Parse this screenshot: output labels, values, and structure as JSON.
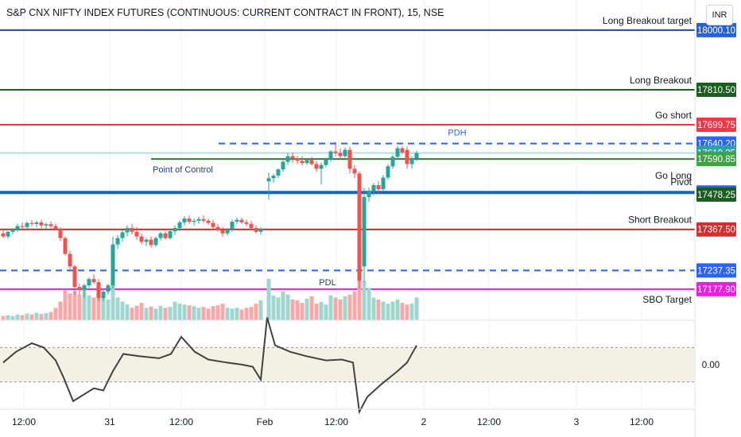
{
  "header": {
    "title": "S&P CNX NIFTY INDEX FUTURES (CONTINUOUS: CURRENT CONTRACT IN FRONT), 15, NSE",
    "currency": "INR"
  },
  "chart_data": {
    "type": "candlestick",
    "ylim": [
      17150,
      18030
    ],
    "time_axis": {
      "ticks": [
        {
          "label": "12:00",
          "t": 30
        },
        {
          "label": "31",
          "t": 138
        },
        {
          "label": "12:00",
          "t": 228
        },
        {
          "label": "Feb",
          "t": 333
        },
        {
          "label": "12:00",
          "t": 423
        },
        {
          "label": "2",
          "t": 533
        },
        {
          "label": "12:00",
          "t": 615
        },
        {
          "label": "3",
          "t": 725
        },
        {
          "label": "12:00",
          "t": 807
        }
      ]
    },
    "levels": [
      {
        "name": "Long Breakout target",
        "price": 18000.1,
        "color": "#1e45b4",
        "style": "solid",
        "badge_color": "#2962cc",
        "from_t": 0
      },
      {
        "name": "Long Breakout",
        "price": 17810.5,
        "color": "#1b5e20",
        "style": "solid",
        "badge_color": "#1b5e20",
        "from_t": 0
      },
      {
        "name": "Go short",
        "price": 17699.75,
        "color": "#e53935",
        "style": "solid",
        "badge_color": "#f23645",
        "from_t": 0
      },
      {
        "name": "PDH",
        "price": 17640.2,
        "color": "#2962ff",
        "style": "dashed",
        "badge_color": "#2962ff",
        "from_t": 275,
        "label_pos": "center"
      },
      {
        "name": "",
        "price": 17610.25,
        "color": "#b2dfdb",
        "style": "solid",
        "badge_color": "#26a69a",
        "from_t": 0
      },
      {
        "name": "Point of Control",
        "price": 17590.85,
        "color": "#2e7d32",
        "style": "solid",
        "badge_color": "#43a047",
        "from_t": 190,
        "label_pos": "left"
      },
      {
        "name": "Pivot",
        "price": 17484.75,
        "color": "#1565c0",
        "style": "thick",
        "badge_color": "#2962ff",
        "from_t": 0
      },
      {
        "name": "Go Long",
        "price": 17478.25,
        "color": "#1b5e20",
        "style": "none",
        "badge_color": "#1b5e20",
        "from_t": 0
      },
      {
        "name": "Short Breakout",
        "price": 17367.5,
        "color": "#c62828",
        "style": "solid",
        "badge_color": "#d32f2f",
        "from_t": 0
      },
      {
        "name": "",
        "price": 17237.35,
        "color": "#2962ff",
        "style": "dashed",
        "badge_color": "#2962ff",
        "from_t": 0
      },
      {
        "name": "PDL",
        "price": 17177.9,
        "color": "#e91ee0",
        "style": "solid",
        "badge_color": "#e91ee0",
        "from_t": 0,
        "label_pos": "pdl"
      },
      {
        "name": "SBO Target",
        "price": null,
        "color": "#131722",
        "style": "none",
        "badge_color": "",
        "from_t": 0
      }
    ],
    "candles": [
      {
        "t": 4,
        "o": 17355,
        "h": 17368,
        "l": 17340,
        "c": 17345
      },
      {
        "t": 10,
        "o": 17345,
        "h": 17362,
        "l": 17338,
        "c": 17360
      },
      {
        "t": 16,
        "o": 17360,
        "h": 17372,
        "l": 17352,
        "c": 17368
      },
      {
        "t": 22,
        "o": 17368,
        "h": 17385,
        "l": 17360,
        "c": 17378
      },
      {
        "t": 28,
        "o": 17378,
        "h": 17390,
        "l": 17368,
        "c": 17375
      },
      {
        "t": 34,
        "o": 17375,
        "h": 17392,
        "l": 17368,
        "c": 17388
      },
      {
        "t": 40,
        "o": 17388,
        "h": 17398,
        "l": 17378,
        "c": 17385
      },
      {
        "t": 46,
        "o": 17385,
        "h": 17395,
        "l": 17375,
        "c": 17390
      },
      {
        "t": 52,
        "o": 17390,
        "h": 17398,
        "l": 17372,
        "c": 17380
      },
      {
        "t": 58,
        "o": 17380,
        "h": 17388,
        "l": 17370,
        "c": 17384
      },
      {
        "t": 64,
        "o": 17384,
        "h": 17392,
        "l": 17372,
        "c": 17378
      },
      {
        "t": 70,
        "o": 17378,
        "h": 17386,
        "l": 17365,
        "c": 17370
      },
      {
        "t": 76,
        "o": 17370,
        "h": 17375,
        "l": 17330,
        "c": 17340
      },
      {
        "t": 82,
        "o": 17340,
        "h": 17345,
        "l": 17285,
        "c": 17290
      },
      {
        "t": 88,
        "o": 17290,
        "h": 17300,
        "l": 17240,
        "c": 17250
      },
      {
        "t": 94,
        "o": 17250,
        "h": 17255,
        "l": 17160,
        "c": 17185
      },
      {
        "t": 100,
        "o": 17185,
        "h": 17195,
        "l": 17160,
        "c": 17175
      },
      {
        "t": 106,
        "o": 17175,
        "h": 17195,
        "l": 17150,
        "c": 17190
      },
      {
        "t": 112,
        "o": 17190,
        "h": 17215,
        "l": 17182,
        "c": 17210
      },
      {
        "t": 118,
        "o": 17210,
        "h": 17225,
        "l": 17195,
        "c": 17200
      },
      {
        "t": 124,
        "o": 17200,
        "h": 17210,
        "l": 17140,
        "c": 17150
      },
      {
        "t": 130,
        "o": 17150,
        "h": 17175,
        "l": 17140,
        "c": 17170
      },
      {
        "t": 136,
        "o": 17170,
        "h": 17195,
        "l": 17160,
        "c": 17190
      },
      {
        "t": 142,
        "o": 17190,
        "h": 17345,
        "l": 17180,
        "c": 17320
      },
      {
        "t": 148,
        "o": 17320,
        "h": 17350,
        "l": 17305,
        "c": 17340
      },
      {
        "t": 154,
        "o": 17340,
        "h": 17365,
        "l": 17328,
        "c": 17358
      },
      {
        "t": 160,
        "o": 17358,
        "h": 17380,
        "l": 17345,
        "c": 17372
      },
      {
        "t": 166,
        "o": 17372,
        "h": 17385,
        "l": 17352,
        "c": 17360
      },
      {
        "t": 172,
        "o": 17360,
        "h": 17375,
        "l": 17335,
        "c": 17345
      },
      {
        "t": 178,
        "o": 17345,
        "h": 17355,
        "l": 17320,
        "c": 17328
      },
      {
        "t": 184,
        "o": 17328,
        "h": 17340,
        "l": 17315,
        "c": 17335
      },
      {
        "t": 190,
        "o": 17335,
        "h": 17345,
        "l": 17310,
        "c": 17318
      },
      {
        "t": 196,
        "o": 17318,
        "h": 17345,
        "l": 17312,
        "c": 17340
      },
      {
        "t": 202,
        "o": 17340,
        "h": 17360,
        "l": 17332,
        "c": 17355
      },
      {
        "t": 208,
        "o": 17355,
        "h": 17362,
        "l": 17335,
        "c": 17340
      },
      {
        "t": 214,
        "o": 17340,
        "h": 17370,
        "l": 17335,
        "c": 17362
      },
      {
        "t": 220,
        "o": 17362,
        "h": 17380,
        "l": 17350,
        "c": 17372
      },
      {
        "t": 226,
        "o": 17372,
        "h": 17395,
        "l": 17362,
        "c": 17390
      },
      {
        "t": 232,
        "o": 17390,
        "h": 17410,
        "l": 17380,
        "c": 17402
      },
      {
        "t": 238,
        "o": 17402,
        "h": 17412,
        "l": 17385,
        "c": 17392
      },
      {
        "t": 244,
        "o": 17392,
        "h": 17402,
        "l": 17380,
        "c": 17395
      },
      {
        "t": 250,
        "o": 17395,
        "h": 17408,
        "l": 17385,
        "c": 17400
      },
      {
        "t": 256,
        "o": 17400,
        "h": 17412,
        "l": 17388,
        "c": 17395
      },
      {
        "t": 262,
        "o": 17395,
        "h": 17402,
        "l": 17382,
        "c": 17388
      },
      {
        "t": 268,
        "o": 17388,
        "h": 17398,
        "l": 17370,
        "c": 17375
      },
      {
        "t": 274,
        "o": 17375,
        "h": 17385,
        "l": 17360,
        "c": 17365
      },
      {
        "t": 280,
        "o": 17365,
        "h": 17375,
        "l": 17345,
        "c": 17355
      },
      {
        "t": 286,
        "o": 17355,
        "h": 17372,
        "l": 17348,
        "c": 17368
      },
      {
        "t": 292,
        "o": 17368,
        "h": 17398,
        "l": 17360,
        "c": 17392
      },
      {
        "t": 298,
        "o": 17392,
        "h": 17405,
        "l": 17385,
        "c": 17398
      },
      {
        "t": 304,
        "o": 17398,
        "h": 17405,
        "l": 17385,
        "c": 17390
      },
      {
        "t": 310,
        "o": 17390,
        "h": 17398,
        "l": 17378,
        "c": 17385
      },
      {
        "t": 316,
        "o": 17385,
        "h": 17395,
        "l": 17365,
        "c": 17372
      },
      {
        "t": 322,
        "o": 17372,
        "h": 17380,
        "l": 17355,
        "c": 17360
      },
      {
        "t": 328,
        "o": 17360,
        "h": 17375,
        "l": 17350,
        "c": 17368
      },
      {
        "t": 338,
        "o": 17520,
        "h": 17548,
        "l": 17462,
        "c": 17530
      },
      {
        "t": 344,
        "o": 17530,
        "h": 17545,
        "l": 17515,
        "c": 17538
      },
      {
        "t": 350,
        "o": 17538,
        "h": 17562,
        "l": 17530,
        "c": 17558
      },
      {
        "t": 356,
        "o": 17558,
        "h": 17590,
        "l": 17550,
        "c": 17582
      },
      {
        "t": 362,
        "o": 17582,
        "h": 17610,
        "l": 17572,
        "c": 17600
      },
      {
        "t": 368,
        "o": 17600,
        "h": 17612,
        "l": 17580,
        "c": 17592
      },
      {
        "t": 374,
        "o": 17592,
        "h": 17600,
        "l": 17575,
        "c": 17585
      },
      {
        "t": 380,
        "o": 17585,
        "h": 17600,
        "l": 17570,
        "c": 17578
      },
      {
        "t": 386,
        "o": 17578,
        "h": 17592,
        "l": 17572,
        "c": 17588
      },
      {
        "t": 392,
        "o": 17588,
        "h": 17598,
        "l": 17570,
        "c": 17575
      },
      {
        "t": 398,
        "o": 17575,
        "h": 17585,
        "l": 17550,
        "c": 17560
      },
      {
        "t": 404,
        "o": 17560,
        "h": 17580,
        "l": 17510,
        "c": 17572
      },
      {
        "t": 410,
        "o": 17572,
        "h": 17595,
        "l": 17565,
        "c": 17590
      },
      {
        "t": 416,
        "o": 17590,
        "h": 17620,
        "l": 17582,
        "c": 17615
      },
      {
        "t": 422,
        "o": 17615,
        "h": 17645,
        "l": 17600,
        "c": 17610
      },
      {
        "t": 428,
        "o": 17610,
        "h": 17625,
        "l": 17590,
        "c": 17600
      },
      {
        "t": 434,
        "o": 17600,
        "h": 17628,
        "l": 17595,
        "c": 17620
      },
      {
        "t": 440,
        "o": 17620,
        "h": 17630,
        "l": 17545,
        "c": 17560
      },
      {
        "t": 446,
        "o": 17560,
        "h": 17572,
        "l": 17530,
        "c": 17545
      },
      {
        "t": 452,
        "o": 17545,
        "h": 17552,
        "l": 17180,
        "c": 17205
      },
      {
        "t": 458,
        "o": 17250,
        "h": 17500,
        "l": 17200,
        "c": 17470
      },
      {
        "t": 464,
        "o": 17470,
        "h": 17500,
        "l": 17455,
        "c": 17490
      },
      {
        "t": 470,
        "o": 17490,
        "h": 17515,
        "l": 17475,
        "c": 17508
      },
      {
        "t": 476,
        "o": 17508,
        "h": 17520,
        "l": 17480,
        "c": 17495
      },
      {
        "t": 482,
        "o": 17495,
        "h": 17540,
        "l": 17490,
        "c": 17532
      },
      {
        "t": 488,
        "o": 17532,
        "h": 17575,
        "l": 17525,
        "c": 17568
      },
      {
        "t": 494,
        "o": 17568,
        "h": 17605,
        "l": 17560,
        "c": 17598
      },
      {
        "t": 500,
        "o": 17598,
        "h": 17632,
        "l": 17590,
        "c": 17625
      },
      {
        "t": 506,
        "o": 17625,
        "h": 17632,
        "l": 17608,
        "c": 17612
      },
      {
        "t": 512,
        "o": 17620,
        "h": 17630,
        "l": 17560,
        "c": 17575
      },
      {
        "t": 518,
        "o": 17575,
        "h": 17600,
        "l": 17560,
        "c": 17592
      },
      {
        "t": 524,
        "o": 17592,
        "h": 17618,
        "l": 17585,
        "c": 17610
      }
    ],
    "volume": [
      0.1,
      0.12,
      0.1,
      0.14,
      0.12,
      0.16,
      0.14,
      0.18,
      0.15,
      0.17,
      0.2,
      0.3,
      0.45,
      0.72,
      0.65,
      0.7,
      0.62,
      0.75,
      0.6,
      0.55,
      0.8,
      0.66,
      0.5,
      0.92,
      0.55,
      0.45,
      0.38,
      0.3,
      0.35,
      0.42,
      0.3,
      0.33,
      0.28,
      0.35,
      0.3,
      0.32,
      0.45,
      0.4,
      0.38,
      0.36,
      0.34,
      0.3,
      0.32,
      0.28,
      0.34,
      0.36,
      0.4,
      0.3,
      0.28,
      0.3,
      0.26,
      0.3,
      0.32,
      0.4,
      0.48,
      1.0,
      0.6,
      0.55,
      0.7,
      0.62,
      0.5,
      0.48,
      0.42,
      0.52,
      0.58,
      0.4,
      0.44,
      0.38,
      0.6,
      0.55,
      0.5,
      0.58,
      0.62,
      0.7,
      1.15,
      0.95,
      0.78,
      0.55,
      0.5,
      0.45,
      0.4,
      0.45,
      0.5,
      0.42,
      0.38,
      0.4,
      0.55
    ],
    "oscillator": {
      "y_label": "0.00",
      "ylim": [
        -1.0,
        1.0
      ],
      "band": [
        -0.4,
        0.4
      ],
      "values": [
        {
          "t": 4,
          "v": 0.05
        },
        {
          "t": 20,
          "v": 0.3
        },
        {
          "t": 40,
          "v": 0.5
        },
        {
          "t": 55,
          "v": 0.4
        },
        {
          "t": 70,
          "v": 0.1
        },
        {
          "t": 80,
          "v": -0.3
        },
        {
          "t": 92,
          "v": -0.85
        },
        {
          "t": 105,
          "v": -0.7
        },
        {
          "t": 118,
          "v": -0.55
        },
        {
          "t": 130,
          "v": -0.6
        },
        {
          "t": 142,
          "v": -0.15
        },
        {
          "t": 155,
          "v": 0.25
        },
        {
          "t": 175,
          "v": 0.2
        },
        {
          "t": 200,
          "v": 0.15
        },
        {
          "t": 215,
          "v": 0.25
        },
        {
          "t": 228,
          "v": 0.65
        },
        {
          "t": 245,
          "v": 0.3
        },
        {
          "t": 262,
          "v": 0.12
        },
        {
          "t": 285,
          "v": 0.05
        },
        {
          "t": 305,
          "v": 0.0
        },
        {
          "t": 318,
          "v": -0.05
        },
        {
          "t": 328,
          "v": -0.35
        },
        {
          "t": 336,
          "v": 1.1
        },
        {
          "t": 346,
          "v": 0.45
        },
        {
          "t": 365,
          "v": 0.3
        },
        {
          "t": 385,
          "v": 0.2
        },
        {
          "t": 410,
          "v": 0.1
        },
        {
          "t": 430,
          "v": 0.12
        },
        {
          "t": 444,
          "v": 0.05
        },
        {
          "t": 452,
          "v": -1.1
        },
        {
          "t": 462,
          "v": -0.75
        },
        {
          "t": 480,
          "v": -0.45
        },
        {
          "t": 500,
          "v": -0.15
        },
        {
          "t": 512,
          "v": 0.05
        },
        {
          "t": 524,
          "v": 0.45
        }
      ]
    }
  }
}
